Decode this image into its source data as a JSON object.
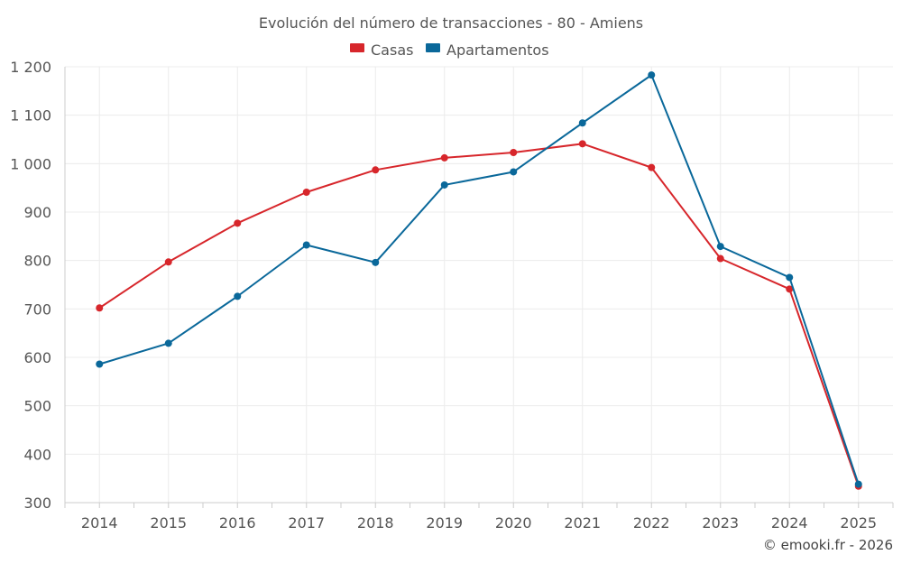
{
  "chart_data": {
    "type": "line",
    "title": "Evolución del número de transacciones - 80 - Amiens",
    "categories": [
      "2014",
      "2015",
      "2016",
      "2017",
      "2018",
      "2019",
      "2020",
      "2021",
      "2022",
      "2023",
      "2024",
      "2025"
    ],
    "series": [
      {
        "name": "Casas",
        "color": "#d7262b",
        "values": [
          702,
          797,
          877,
          941,
          987,
          1012,
          1023,
          1041,
          992,
          804,
          741,
          334
        ]
      },
      {
        "name": "Apartamentos",
        "color": "#0a689a",
        "values": [
          586,
          629,
          726,
          832,
          796,
          956,
          983,
          1084,
          1183,
          829,
          765,
          338
        ]
      }
    ],
    "ylim": [
      300,
      1200
    ],
    "yticks": [
      300,
      400,
      500,
      600,
      700,
      800,
      900,
      1000,
      1100,
      1200
    ],
    "ytick_labels": [
      "300",
      "400",
      "500",
      "600",
      "700",
      "800",
      "900",
      "1 000",
      "1 100",
      "1 200"
    ],
    "xlabel": "",
    "ylabel": "",
    "legend_position": "top-center",
    "grid": true
  },
  "copyright": "© emooki.fr - 2026"
}
